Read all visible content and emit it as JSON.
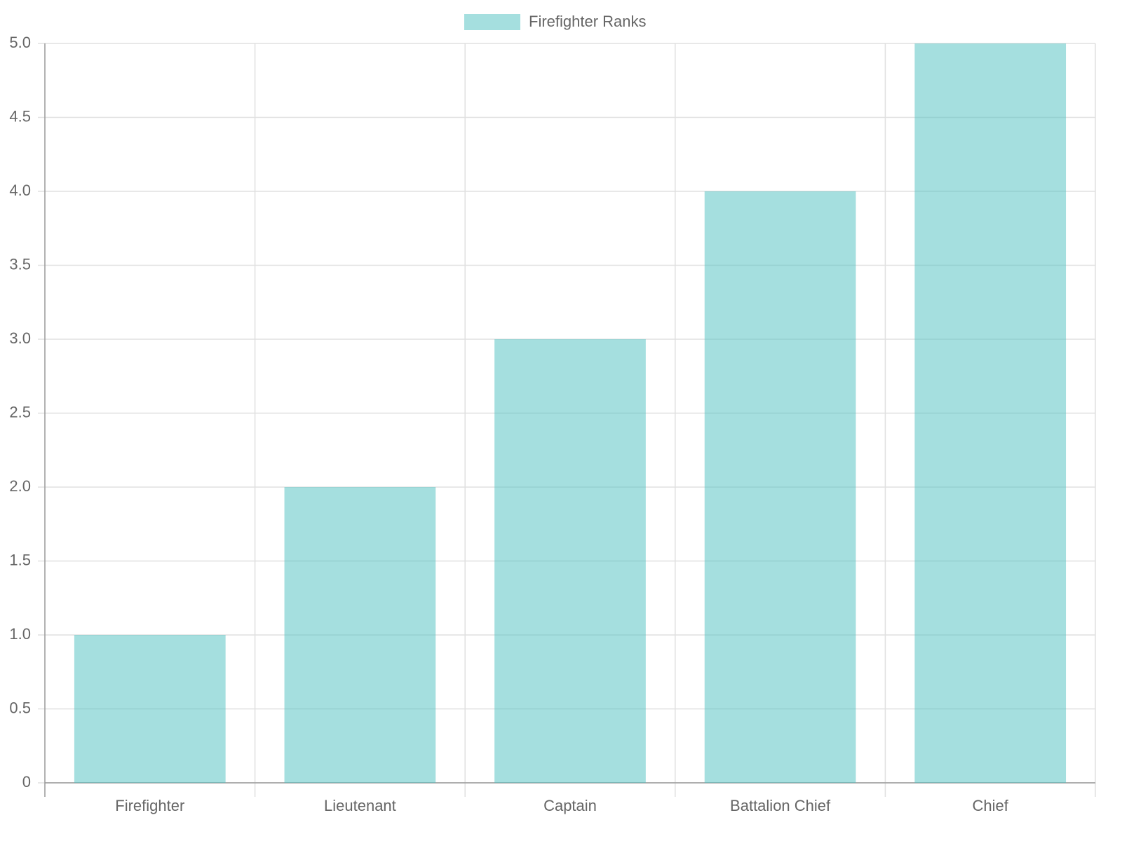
{
  "chart_data": {
    "type": "bar",
    "categories": [
      "Firefighter",
      "Lieutenant",
      "Captain",
      "Battalion Chief",
      "Chief"
    ],
    "series": [
      {
        "name": "Firefighter Ranks",
        "color": "rgba(75, 192, 192, 0.5)",
        "values": [
          1,
          2,
          3,
          4,
          5
        ]
      }
    ],
    "ylim": [
      0,
      5
    ],
    "yticks": [
      0,
      0.5,
      {
        "value": 1,
        "label": "1.0"
      },
      1.5,
      {
        "value": 2,
        "label": "2.0"
      },
      2.5,
      {
        "value": 3,
        "label": "3.0"
      },
      3.5,
      {
        "value": 4,
        "label": "4.0"
      },
      4.5,
      {
        "value": 5,
        "label": "5.0"
      }
    ],
    "grid": true,
    "legend": "top"
  }
}
